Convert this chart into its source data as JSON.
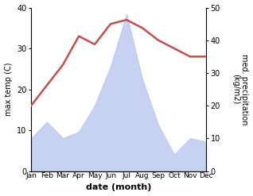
{
  "months": [
    "Jan",
    "Feb",
    "Mar",
    "Apr",
    "May",
    "Jun",
    "Jul",
    "Aug",
    "Sep",
    "Oct",
    "Nov",
    "Dec"
  ],
  "temperature": [
    16,
    21,
    26,
    33,
    31,
    36,
    37,
    35,
    32,
    30,
    28,
    28
  ],
  "precipitation": [
    10,
    15,
    10,
    12,
    20,
    32,
    48,
    28,
    14,
    5,
    10,
    9
  ],
  "temp_color": "#c0504d",
  "precip_fill_color": "#bdc9f0",
  "precip_edge_color": "#bdc9f0",
  "temp_ylim": [
    0,
    40
  ],
  "precip_ylim": [
    0,
    50
  ],
  "temp_yticks": [
    0,
    10,
    20,
    30,
    40
  ],
  "precip_yticks": [
    0,
    10,
    20,
    30,
    40,
    50
  ],
  "xlabel": "date (month)",
  "ylabel_left": "max temp (C)",
  "ylabel_right": "med. precipitation\n(kg/m2)",
  "bg_color": "#ffffff",
  "line_width": 1.8,
  "label_fontsize": 7,
  "tick_fontsize": 7
}
